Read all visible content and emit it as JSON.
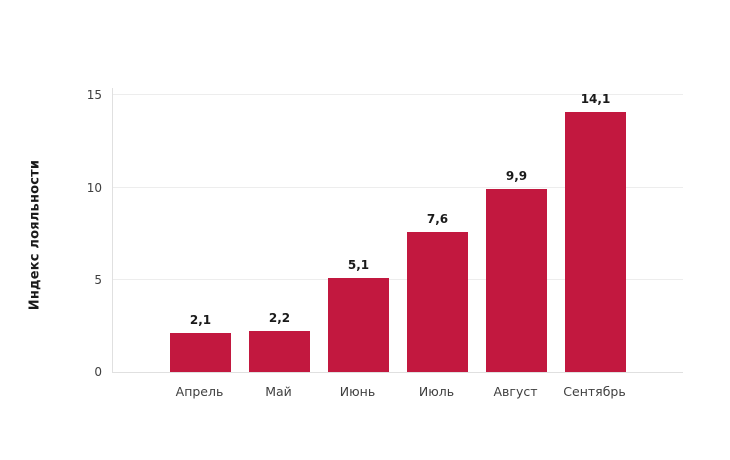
{
  "chart_data": {
    "type": "bar",
    "title": "",
    "ylabel": "Индекс лояльности",
    "xlabel": "",
    "categories": [
      "Апрель",
      "Май",
      "Июнь",
      "Июль",
      "Август",
      "Сентябрь"
    ],
    "values": [
      2.1,
      2.2,
      5.1,
      7.6,
      9.9,
      14.1
    ],
    "value_labels": [
      "2,1",
      "2,2",
      "5,1",
      "7,6",
      "9,9",
      "14,1"
    ],
    "yticks": [
      0,
      5,
      10,
      15
    ],
    "ytick_labels": [
      "0",
      "5",
      "10",
      "15"
    ],
    "ylim": [
      0,
      15.4
    ],
    "grid": true,
    "legend": false,
    "bar_color": "#C2183F"
  },
  "colors": {
    "background": "#FFFFFF",
    "bar": "#C2183F",
    "gridline": "#EDEDED",
    "axis_line": "#E0E0E0",
    "tick_text": "#404040",
    "value_label_text": "#1A1A1A"
  }
}
